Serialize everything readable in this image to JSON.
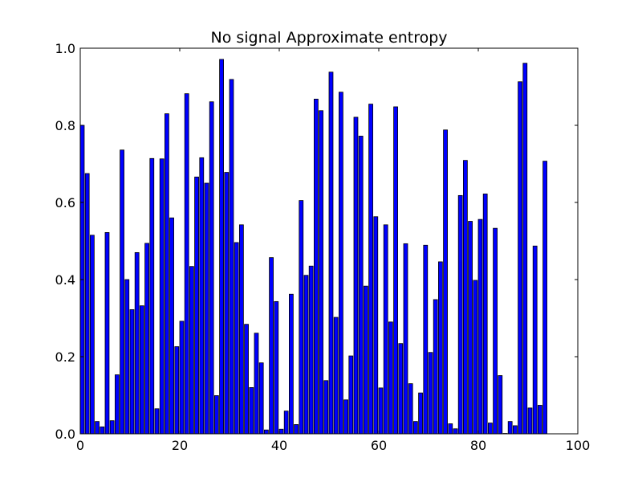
{
  "chart_data": {
    "type": "bar",
    "title": "No signal Approximate entropy",
    "xlabel": "",
    "ylabel": "",
    "xlim": [
      0,
      100
    ],
    "ylim": [
      0,
      1.0
    ],
    "x_ticks": [
      "0",
      "20",
      "40",
      "60",
      "80",
      "100"
    ],
    "y_ticks": [
      "0.0",
      "0.2",
      "0.4",
      "0.6",
      "0.8",
      "1.0"
    ],
    "bar_color": "#0000ff",
    "values": [
      0.8,
      0.675,
      0.515,
      0.032,
      0.018,
      0.522,
      0.034,
      0.153,
      0.736,
      0.4,
      0.322,
      0.47,
      0.332,
      0.494,
      0.714,
      0.065,
      0.713,
      0.83,
      0.56,
      0.226,
      0.292,
      0.882,
      0.434,
      0.666,
      0.716,
      0.65,
      0.861,
      0.099,
      0.971,
      0.678,
      0.919,
      0.496,
      0.542,
      0.284,
      0.12,
      0.261,
      0.184,
      0.01,
      0.457,
      0.343,
      0.012,
      0.059,
      0.362,
      0.024,
      0.605,
      0.411,
      0.435,
      0.868,
      0.838,
      0.138,
      0.938,
      0.302,
      0.886,
      0.088,
      0.202,
      0.821,
      0.772,
      0.383,
      0.855,
      0.563,
      0.119,
      0.542,
      0.29,
      0.848,
      0.234,
      0.493,
      0.13,
      0.032,
      0.106,
      0.489,
      0.211,
      0.348,
      0.446,
      0.788,
      0.026,
      0.013,
      0.618,
      0.709,
      0.551,
      0.398,
      0.556,
      0.622,
      0.028,
      0.533,
      0.151,
      0.001,
      0.032,
      0.021,
      0.913,
      0.961,
      0.067,
      0.487,
      0.074,
      0.707
    ]
  }
}
